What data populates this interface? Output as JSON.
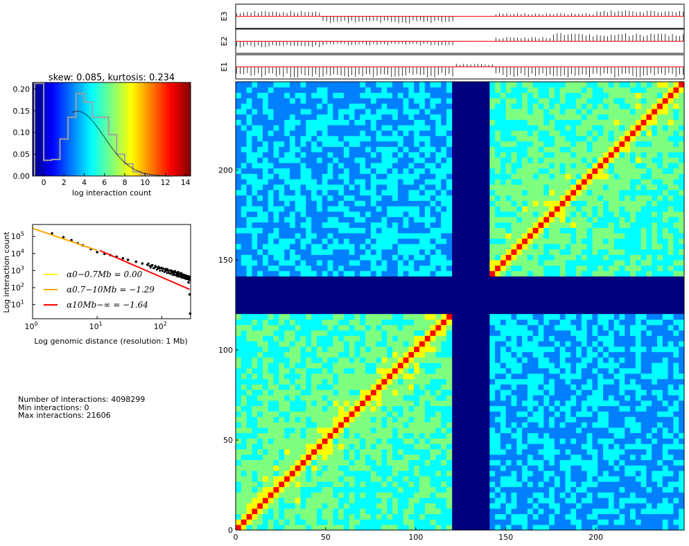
{
  "colormap": [
    "#00007f",
    "#0000ff",
    "#007fff",
    "#00ffff",
    "#7fff7f",
    "#ffff00",
    "#ff7f00",
    "#ff0000",
    "#7f0000"
  ],
  "chart_data": [
    {
      "type": "histogram",
      "title": "skew: 0.085, kurtosis: 0.234",
      "xlabel": "log interaction count",
      "ylabel": "",
      "xlim": [
        -1.1,
        14.5
      ],
      "ylim": [
        0,
        0.215
      ],
      "xticks": [
        0,
        2,
        4,
        6,
        8,
        10,
        12,
        14
      ],
      "yticks": [
        0.0,
        0.05,
        0.1,
        0.15,
        0.2
      ],
      "ytick_labels": [
        "0.00",
        "0.05",
        "0.10",
        "0.15",
        "0.20"
      ],
      "bins": [
        {
          "x0": -0.9,
          "x1": 0,
          "y": 0.213
        },
        {
          "x0": 0,
          "x1": 0.8,
          "y": 0.036
        },
        {
          "x0": 0.8,
          "x1": 1.6,
          "y": 0.038
        },
        {
          "x0": 1.6,
          "x1": 2.4,
          "y": 0.085
        },
        {
          "x0": 2.4,
          "x1": 3.2,
          "y": 0.135
        },
        {
          "x0": 3.2,
          "x1": 4.0,
          "y": 0.19
        },
        {
          "x0": 4.0,
          "x1": 4.8,
          "y": 0.17
        },
        {
          "x0": 4.8,
          "x1": 5.6,
          "y": 0.135
        },
        {
          "x0": 5.6,
          "x1": 6.4,
          "y": 0.135
        },
        {
          "x0": 6.4,
          "x1": 7.2,
          "y": 0.095
        },
        {
          "x0": 7.2,
          "x1": 8.0,
          "y": 0.05
        },
        {
          "x0": 8.0,
          "x1": 8.8,
          "y": 0.028
        },
        {
          "x0": 8.8,
          "x1": 9.6,
          "y": 0.01
        },
        {
          "x0": 9.6,
          "x1": 10.4,
          "y": 0.004
        },
        {
          "x0": 10.4,
          "x1": 11.2,
          "y": 0.001
        },
        {
          "x0": 11.2,
          "x1": 12.0,
          "y": 0.0005
        },
        {
          "x0": 12.0,
          "x1": 12.8,
          "y": 0.0
        }
      ],
      "fit": {
        "mean": 3.3,
        "sd": 2.65,
        "peak": 0.149
      }
    },
    {
      "type": "scatter",
      "xlabel": "Log genomic distance (resolution: 1 Mb)",
      "ylabel": "Log interaction count",
      "xscale": "log",
      "yscale": "log",
      "xlim": [
        1,
        280
      ],
      "ylim": [
        1.5,
        500000
      ],
      "xticks": [
        1,
        10,
        100
      ],
      "yticks": [
        10,
        100,
        1000,
        10000,
        100000
      ],
      "points_x": [
        2,
        3,
        4,
        5,
        6,
        8,
        10,
        13,
        16,
        20,
        25,
        30,
        40,
        50,
        60,
        70,
        80,
        90,
        100,
        120,
        140,
        160,
        180,
        200,
        220,
        240,
        260,
        270,
        275
      ],
      "points_y": [
        150000,
        90000,
        60000,
        40000,
        30000,
        18000,
        12000,
        9500,
        8000,
        6500,
        5200,
        4300,
        3300,
        2600,
        2200,
        1900,
        1700,
        1500,
        1400,
        1200,
        1000,
        900,
        800,
        700,
        550,
        400,
        200,
        40,
        3
      ],
      "series": [
        {
          "name": "α0−0.7Mb = 0.00",
          "color": "#ffff00",
          "x": [
            1,
            1
          ],
          "y": [
            300000,
            300000
          ]
        },
        {
          "name": "α0.7−10Mb = −1.29",
          "color": "#ffa500",
          "x": [
            1,
            10
          ],
          "y": [
            300000,
            15300
          ]
        },
        {
          "name": "α10Mb−∞ = −1.64",
          "color": "#ff0000",
          "x": [
            11,
            270
          ],
          "y": [
            15000,
            79
          ]
        }
      ],
      "legend_location": "lower-left"
    },
    {
      "type": "heatmap",
      "xlim": [
        0,
        249
      ],
      "ylim": [
        0,
        249
      ],
      "xticks": [
        0,
        50,
        100,
        150,
        200
      ],
      "yticks": [
        0,
        50,
        100,
        150,
        200
      ],
      "gap_start": 121,
      "gap_end": 142,
      "matrix_size": 249
    },
    {
      "type": "bar",
      "tracks": [
        {
          "name": "E3",
          "color": "#000000",
          "baseline_color": "#ff0000",
          "segments": [
            [
              0,
              48,
              0.5
            ],
            [
              48,
              121,
              -0.7
            ],
            [
              121,
              143,
              -0.05
            ],
            [
              143,
              200,
              0.3
            ],
            [
              200,
              249,
              0.55
            ]
          ]
        },
        {
          "name": "E2",
          "color": "#000000",
          "baseline_color": "#ff0000",
          "segments": [
            [
              0,
              48,
              -0.6
            ],
            [
              48,
              121,
              -0.4
            ],
            [
              121,
              143,
              -0.05
            ],
            [
              143,
              175,
              0.4
            ],
            [
              175,
              249,
              0.8
            ]
          ]
        },
        {
          "name": "E1",
          "color": "#000000",
          "baseline_color": "#ff0000",
          "segments": [
            [
              0,
              121,
              -1.0
            ],
            [
              121,
              143,
              0.3
            ],
            [
              143,
              249,
              -1.0
            ]
          ]
        }
      ]
    }
  ],
  "stats": {
    "line1": "Number of interactions: 4098299",
    "line2": "Min interactions: 0",
    "line3": "Max interactions: 21606"
  }
}
